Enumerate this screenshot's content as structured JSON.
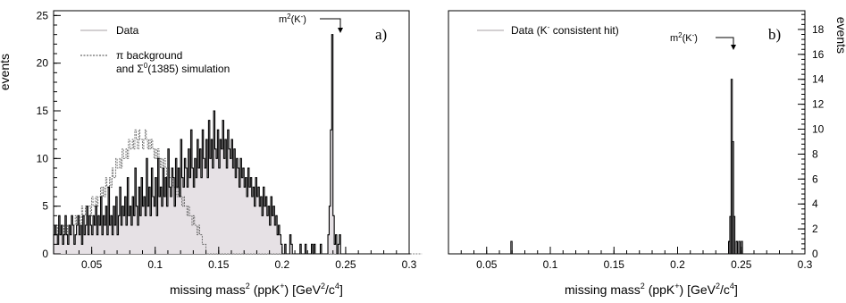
{
  "chart_data": [
    {
      "type": "histogram",
      "panel_label": "a)",
      "xlabel_main": "missing mass",
      "xlabel_sup1": "2",
      "xlabel_mid": " (ppK",
      "xlabel_sup2": "+",
      "xlabel_unit_open": ")  [GeV",
      "xlabel_sup3": "2",
      "xlabel_unit_mid": "/c",
      "xlabel_sup4": "4",
      "xlabel_unit_close": "]",
      "ylabel": "events",
      "xlim": [
        0.02,
        0.3
      ],
      "ylim": [
        0,
        25.5
      ],
      "xticks": [
        "0.05",
        "0.1",
        "0.15",
        "0.2",
        "0.25",
        "0.3"
      ],
      "yticks": [
        "0",
        "5",
        "10",
        "15",
        "20",
        "25"
      ],
      "legend": [
        {
          "label": "Data",
          "style": "solid-light"
        },
        {
          "label_line1": "π background",
          "label_line2_a": "and Σ",
          "label_line2_sup": "0",
          "label_line2_b": "(1385) simulation",
          "style": "dashed"
        }
      ],
      "annotation": {
        "text": "m",
        "sup": "2",
        "text2": "(K",
        "sup2": "-",
        "text3": ")",
        "x": 0.245
      },
      "bin_width": 0.001,
      "data": [
        2,
        3,
        2,
        1,
        4,
        2,
        3,
        1,
        2,
        4,
        2,
        1,
        3,
        2,
        4,
        3,
        1,
        2,
        3,
        4,
        2,
        3,
        1,
        4,
        2,
        3,
        5,
        2,
        4,
        3,
        2,
        4,
        3,
        5,
        2,
        4,
        3,
        6,
        2,
        4,
        3,
        5,
        2,
        7,
        3,
        4,
        2,
        5,
        3,
        6,
        2,
        4,
        7,
        3,
        5,
        4,
        6,
        3,
        8,
        4,
        5,
        3,
        6,
        4,
        9,
        5,
        3,
        7,
        4,
        8,
        5,
        6,
        4,
        10,
        5,
        7,
        4,
        9,
        6,
        5,
        8,
        4,
        10,
        6,
        7,
        5,
        9,
        6,
        8,
        5,
        11,
        7,
        6,
        9,
        8,
        5,
        10,
        7,
        9,
        6,
        12,
        8,
        7,
        10,
        9,
        7,
        11,
        8,
        13,
        9,
        7,
        10,
        8,
        12,
        9,
        11,
        8,
        13,
        10,
        9,
        12,
        8,
        14,
        10,
        12,
        9,
        15,
        11,
        10,
        13,
        9,
        12,
        11,
        14,
        10,
        12,
        9,
        13,
        11,
        10,
        12,
        9,
        11,
        8,
        10,
        9,
        7,
        10,
        8,
        9,
        7,
        8,
        6,
        9,
        7,
        8,
        6,
        7,
        5,
        8,
        6,
        7,
        5,
        6,
        4,
        7,
        5,
        6,
        4,
        5,
        3,
        6,
        4,
        5,
        3,
        4,
        2,
        3,
        2,
        1,
        0,
        0,
        1,
        0,
        0,
        0,
        2,
        1,
        0,
        0,
        0,
        0,
        0,
        0,
        1,
        0,
        0,
        0,
        1,
        0,
        0,
        0,
        0,
        1,
        0,
        1,
        0,
        0,
        0,
        0,
        1,
        0,
        0,
        0,
        0,
        0,
        2,
        5,
        13,
        23,
        4,
        1,
        2,
        0,
        1,
        2,
        0,
        0,
        0,
        0,
        0,
        0,
        0,
        0,
        0,
        0,
        0,
        0,
        0,
        0,
        0,
        0,
        0,
        0,
        0,
        0,
        0,
        0,
        0,
        0,
        0,
        0,
        0,
        0,
        0,
        0,
        0,
        0,
        0,
        0,
        0,
        0,
        0,
        0,
        0,
        0,
        0,
        0,
        0,
        0,
        0,
        0,
        0,
        0,
        0,
        0,
        0,
        0,
        0,
        0,
        0
      ],
      "simulation": [
        2,
        2,
        3,
        2,
        3,
        2,
        3,
        2,
        3,
        3,
        2,
        3,
        3,
        3,
        4,
        3,
        3,
        4,
        3,
        4,
        4,
        3,
        5,
        4,
        4,
        5,
        4,
        5,
        5,
        4,
        6,
        5,
        5,
        6,
        5,
        6,
        6,
        7,
        6,
        7,
        6,
        8,
        7,
        7,
        8,
        7,
        9,
        8,
        8,
        10,
        9,
        9,
        10,
        9,
        11,
        10,
        10,
        11,
        10,
        12,
        11,
        11,
        12,
        11,
        13,
        12,
        11,
        13,
        12,
        12,
        11,
        12,
        13,
        12,
        11,
        12,
        11,
        12,
        11,
        10,
        11,
        10,
        11,
        10,
        9,
        10,
        9,
        10,
        9,
        8,
        9,
        8,
        8,
        7,
        8,
        7,
        7,
        6,
        7,
        6,
        6,
        5,
        6,
        5,
        5,
        4,
        5,
        4,
        4,
        3,
        4,
        3,
        3,
        2,
        3,
        2,
        2,
        1,
        1,
        1,
        0,
        0,
        0,
        0,
        0,
        0,
        0,
        0,
        0,
        0,
        0,
        0,
        0,
        0,
        0,
        0,
        0,
        0,
        0,
        0,
        0,
        0,
        0,
        0,
        0,
        0,
        0,
        0,
        0,
        0,
        0,
        0,
        0,
        0,
        0,
        0,
        0,
        0,
        0,
        0,
        0,
        0,
        0,
        0,
        0,
        0,
        0,
        0,
        0,
        0,
        0,
        0,
        0,
        0,
        0,
        0,
        0,
        0,
        0,
        0,
        0,
        0,
        0,
        0,
        0,
        0,
        0,
        0,
        0,
        0,
        0,
        0,
        0,
        0,
        0,
        0,
        0,
        0,
        0,
        0,
        0,
        0,
        0,
        0,
        0,
        0,
        0,
        0,
        0,
        0,
        0,
        0,
        0,
        0,
        0,
        0,
        0,
        0,
        0,
        0,
        0,
        0,
        0,
        0,
        0,
        0,
        0,
        0,
        0,
        0,
        0,
        0,
        0,
        0,
        0,
        0,
        0,
        0,
        0,
        0,
        0,
        0,
        0,
        0,
        0,
        0,
        0,
        0,
        0,
        0,
        0,
        0,
        0,
        0,
        0,
        0,
        0,
        0,
        0,
        0,
        0,
        0,
        0,
        0,
        0,
        0,
        0,
        0,
        0,
        0,
        0,
        0,
        0,
        0,
        0,
        0,
        0,
        0,
        0,
        0,
        0,
        0,
        0,
        0,
        0,
        0,
        0,
        0,
        0,
        0
      ]
    },
    {
      "type": "histogram",
      "panel_label": "b)",
      "xlabel_main": "missing mass",
      "xlabel_sup1": "2",
      "xlabel_mid": " (ppK",
      "xlabel_sup2": "+",
      "xlabel_unit_open": ")  [GeV",
      "xlabel_sup3": "2",
      "xlabel_unit_mid": "/c",
      "xlabel_sup4": "4",
      "xlabel_unit_close": "]",
      "ylabel": "events",
      "xlim": [
        0.02,
        0.3
      ],
      "ylim": [
        0,
        19.5
      ],
      "xticks": [
        "0.05",
        "0.1",
        "0.15",
        "0.2",
        "0.25",
        "0.3"
      ],
      "yticks": [
        "0",
        "2",
        "4",
        "6",
        "8",
        "10",
        "12",
        "14",
        "16",
        "18"
      ],
      "legend": [
        {
          "label_a": "Data (K",
          "label_sup": "-",
          "label_b": " consistent hit)",
          "style": "solid-light"
        }
      ],
      "annotation": {
        "text": "m",
        "sup": "2",
        "text2": "(K",
        "sup2": "-",
        "text3": ")",
        "x": 0.243
      },
      "bins": [
        {
          "x0": 0.069,
          "x1": 0.07,
          "count": 1
        },
        {
          "x0": 0.24,
          "x1": 0.241,
          "count": 1
        },
        {
          "x0": 0.241,
          "x1": 0.242,
          "count": 3
        },
        {
          "x0": 0.242,
          "x1": 0.243,
          "count": 14
        },
        {
          "x0": 0.243,
          "x1": 0.244,
          "count": 9
        },
        {
          "x0": 0.244,
          "x1": 0.245,
          "count": 3
        },
        {
          "x0": 0.246,
          "x1": 0.247,
          "count": 1
        },
        {
          "x0": 0.248,
          "x1": 0.249,
          "count": 1
        },
        {
          "x0": 0.25,
          "x1": 0.251,
          "count": 1
        }
      ]
    }
  ]
}
